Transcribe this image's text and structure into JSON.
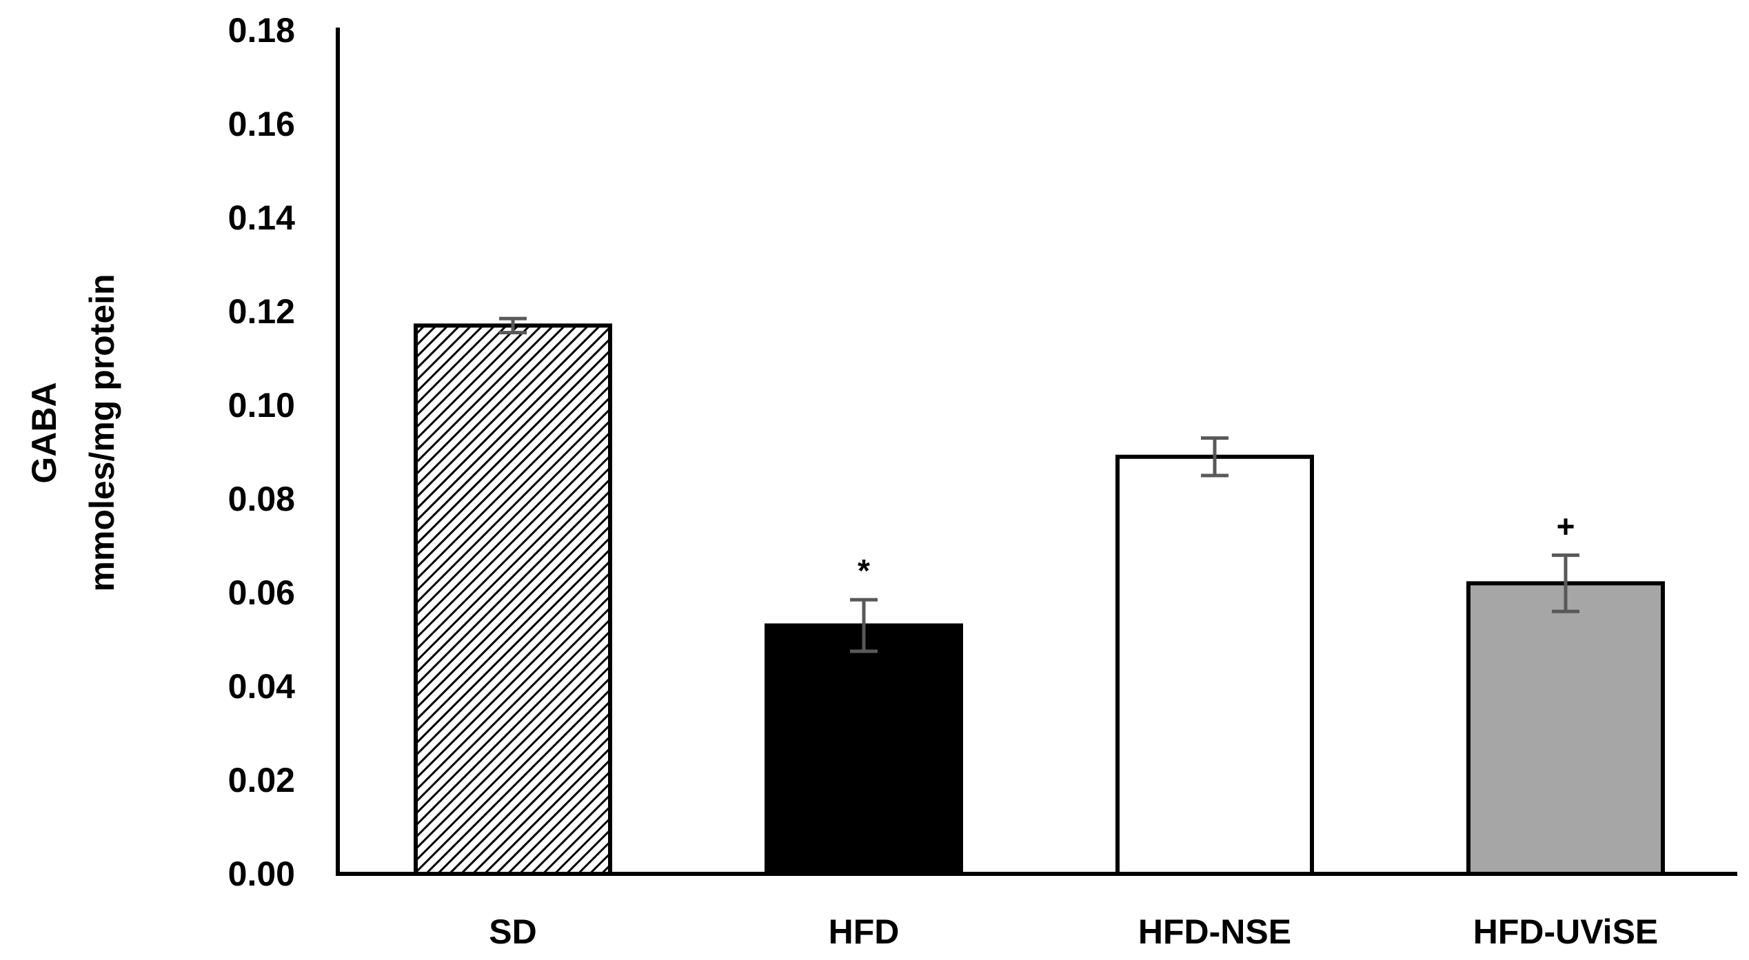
{
  "chart_data": {
    "type": "bar",
    "title": "",
    "ylabel_lines": [
      "GABA",
      "mmoles/mg protein"
    ],
    "xlabel": "",
    "ylim": [
      0,
      0.18
    ],
    "yticks": [
      "0.00",
      "0.02",
      "0.04",
      "0.06",
      "0.08",
      "0.10",
      "0.12",
      "0.14",
      "0.16",
      "0.18"
    ],
    "ytick_values": [
      0,
      0.02,
      0.04,
      0.06,
      0.08,
      0.1,
      0.12,
      0.14,
      0.16,
      0.18
    ],
    "categories": [
      "SD",
      "HFD",
      "HFD-NSE",
      "HFD-UViSE"
    ],
    "values": [
      0.117,
      0.053,
      0.089,
      0.062
    ],
    "errors": [
      0.0015,
      0.0055,
      0.004,
      0.006
    ],
    "annotations": [
      "",
      "*",
      "",
      "+"
    ],
    "bar_styles": [
      "hatched",
      "solid-black",
      "white",
      "gray"
    ],
    "grid": false,
    "legend": "none"
  },
  "colors": {
    "hfd_fill": "#000000",
    "hfd_nse_fill": "#ffffff",
    "hfd_uvise_fill": "#a6a6a6",
    "bar_outline": "#000000",
    "error_bar": "#595959",
    "axis": "#000000"
  }
}
